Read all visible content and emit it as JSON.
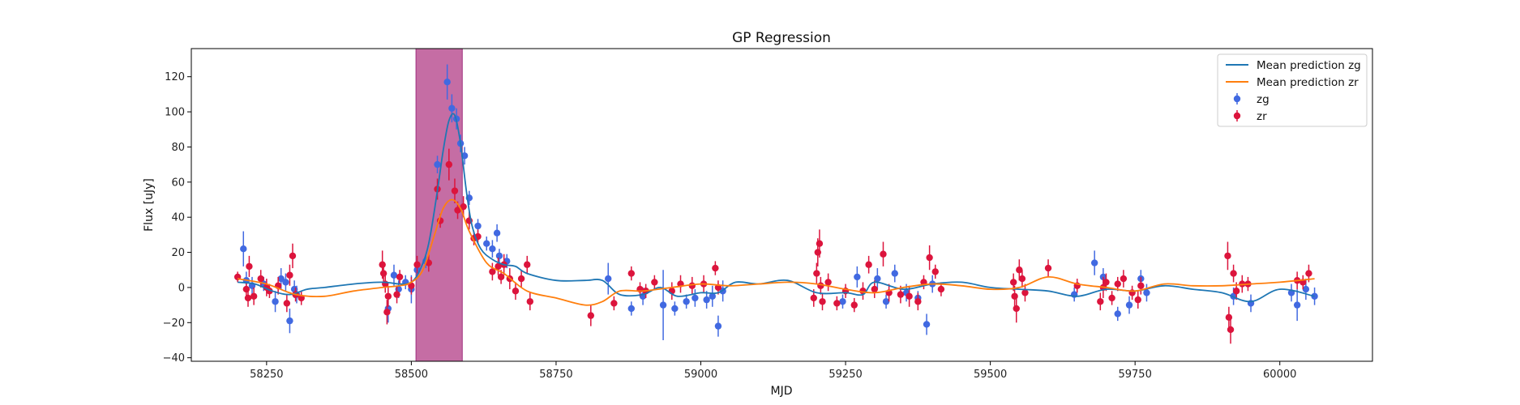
{
  "chart_data": {
    "type": "scatter",
    "title": "GP Regression",
    "xlabel": "MJD",
    "ylabel": "Flux [uJy]",
    "xlim": [
      58120,
      60160
    ],
    "ylim": [
      -42,
      136
    ],
    "xticks": [
      58250,
      58500,
      58750,
      59000,
      59250,
      59500,
      59750,
      60000
    ],
    "yticks": [
      -40,
      -20,
      0,
      20,
      40,
      60,
      80,
      100,
      120
    ],
    "legend_position": "top-right",
    "highlight_band": {
      "x0": 58508,
      "x1": 58588,
      "color": "#c2659f"
    },
    "mean_predictions": [
      {
        "name": "Mean prediction zg",
        "color": "#1f77b4",
        "x": [
          58200,
          58230,
          58260,
          58290,
          58320,
          58350,
          58400,
          58450,
          58480,
          58500,
          58515,
          58530,
          58545,
          58555,
          58565,
          58575,
          58585,
          58595,
          58605,
          58620,
          58640,
          58660,
          58680,
          58700,
          58750,
          58800,
          58830,
          58860,
          58900,
          58930,
          58960,
          59000,
          59030,
          59060,
          59100,
          59150,
          59200,
          59250,
          59280,
          59300,
          59350,
          59400,
          59450,
          59500,
          59550,
          59600,
          59650,
          59700,
          59750,
          59800,
          59850,
          59900,
          59950,
          60000,
          60060
        ],
        "y": [
          3,
          2,
          -2,
          -4,
          -1,
          0,
          2,
          3,
          2,
          3,
          10,
          25,
          55,
          78,
          95,
          98,
          82,
          55,
          35,
          22,
          16,
          13,
          12,
          8,
          4,
          4,
          4,
          -4,
          -4,
          0,
          -5,
          -3,
          -3,
          3,
          2,
          4,
          -3,
          -3,
          -4,
          3,
          -1,
          2,
          3,
          0,
          -1,
          -2,
          -5,
          -1,
          -2,
          1,
          -1,
          -3,
          -8,
          -1,
          -5
        ]
      },
      {
        "name": "Mean prediction zr",
        "color": "#ff7f0e",
        "x": [
          58200,
          58250,
          58300,
          58350,
          58400,
          58450,
          58480,
          58500,
          58520,
          58540,
          58555,
          58570,
          58585,
          58600,
          58630,
          58660,
          58700,
          58750,
          58800,
          58830,
          58860,
          58900,
          58950,
          59000,
          59050,
          59100,
          59150,
          59200,
          59250,
          59300,
          59350,
          59400,
          59450,
          59500,
          59550,
          59600,
          59650,
          59700,
          59750,
          59800,
          59850,
          59900,
          59950,
          60000,
          60060
        ],
        "y": [
          5,
          2,
          -4,
          -5,
          -2,
          0,
          1,
          3,
          10,
          30,
          45,
          50,
          45,
          32,
          14,
          8,
          -2,
          -6,
          -10,
          -8,
          -2,
          -2,
          0,
          2,
          1,
          2,
          3,
          2,
          -1,
          -3,
          0,
          2,
          1,
          -1,
          0,
          6,
          2,
          0,
          -2,
          2,
          1,
          1,
          2,
          3,
          5
        ]
      }
    ],
    "series": [
      {
        "name": "zg",
        "color": "#4169e1",
        "points": [
          [
            58210,
            22,
            10
          ],
          [
            58215,
            4,
            5
          ],
          [
            58225,
            1,
            5
          ],
          [
            58245,
            2,
            4
          ],
          [
            58265,
            -8,
            6
          ],
          [
            58275,
            5,
            6
          ],
          [
            58283,
            3,
            5
          ],
          [
            58290,
            -19,
            7
          ],
          [
            58298,
            -1,
            5
          ],
          [
            58302,
            -4,
            5
          ],
          [
            58460,
            -12,
            8
          ],
          [
            58470,
            7,
            6
          ],
          [
            58478,
            -1,
            5
          ],
          [
            58490,
            3,
            4
          ],
          [
            58500,
            -1,
            8
          ],
          [
            58510,
            10,
            5
          ],
          [
            58525,
            15,
            4
          ],
          [
            58545,
            70,
            5
          ],
          [
            58562,
            117,
            10
          ],
          [
            58570,
            102,
            8
          ],
          [
            58578,
            96,
            6
          ],
          [
            58585,
            82,
            5
          ],
          [
            58592,
            75,
            5
          ],
          [
            58600,
            51,
            4
          ],
          [
            58615,
            35,
            4
          ],
          [
            58630,
            25,
            4
          ],
          [
            58640,
            22,
            5
          ],
          [
            58648,
            31,
            5
          ],
          [
            58652,
            18,
            4
          ],
          [
            58665,
            15,
            4
          ],
          [
            58840,
            5,
            9
          ],
          [
            58880,
            -12,
            4
          ],
          [
            58900,
            -5,
            5
          ],
          [
            58935,
            -10,
            20
          ],
          [
            58955,
            -12,
            4
          ],
          [
            58975,
            -8,
            4
          ],
          [
            58990,
            -6,
            5
          ],
          [
            59010,
            -7,
            5
          ],
          [
            59020,
            -5,
            6
          ],
          [
            59030,
            -22,
            6
          ],
          [
            59038,
            -2,
            6
          ],
          [
            59245,
            -8,
            4
          ],
          [
            59270,
            6,
            6
          ],
          [
            59305,
            5,
            6
          ],
          [
            59320,
            -8,
            4
          ],
          [
            59335,
            8,
            5
          ],
          [
            59355,
            -3,
            5
          ],
          [
            59375,
            -6,
            4
          ],
          [
            59390,
            -21,
            6
          ],
          [
            59400,
            2,
            5
          ],
          [
            59645,
            -4,
            4
          ],
          [
            59680,
            14,
            7
          ],
          [
            59695,
            6,
            5
          ],
          [
            59720,
            -15,
            4
          ],
          [
            59740,
            -10,
            5
          ],
          [
            59760,
            5,
            5
          ],
          [
            59770,
            -3,
            5
          ],
          [
            59920,
            -5,
            5
          ],
          [
            59950,
            -9,
            5
          ],
          [
            60020,
            -3,
            5
          ],
          [
            60030,
            -10,
            9
          ],
          [
            60045,
            -1,
            6
          ],
          [
            60060,
            -5,
            5
          ]
        ]
      },
      {
        "name": "zr",
        "color": "#dc143c",
        "points": [
          [
            58200,
            6,
            3
          ],
          [
            58215,
            -1,
            4
          ],
          [
            58218,
            -6,
            5
          ],
          [
            58220,
            12,
            6
          ],
          [
            58228,
            -5,
            5
          ],
          [
            58240,
            5,
            5
          ],
          [
            58250,
            0,
            5
          ],
          [
            58255,
            -2,
            4
          ],
          [
            58270,
            1,
            5
          ],
          [
            58285,
            -9,
            5
          ],
          [
            58290,
            7,
            6
          ],
          [
            58295,
            18,
            7
          ],
          [
            58300,
            -4,
            4
          ],
          [
            58310,
            -6,
            4
          ],
          [
            58450,
            13,
            8
          ],
          [
            58452,
            8,
            5
          ],
          [
            58455,
            2,
            5
          ],
          [
            58458,
            -14,
            7
          ],
          [
            58460,
            -5,
            6
          ],
          [
            58475,
            -4,
            5
          ],
          [
            58480,
            6,
            4
          ],
          [
            58500,
            1,
            5
          ],
          [
            58510,
            13,
            5
          ],
          [
            58530,
            14,
            5
          ],
          [
            58545,
            56,
            6
          ],
          [
            58550,
            38,
            4
          ],
          [
            58565,
            70,
            9
          ],
          [
            58575,
            55,
            7
          ],
          [
            58580,
            44,
            5
          ],
          [
            58590,
            46,
            6
          ],
          [
            58600,
            38,
            5
          ],
          [
            58608,
            28,
            4
          ],
          [
            58615,
            29,
            4
          ],
          [
            58640,
            9,
            5
          ],
          [
            58650,
            12,
            5
          ],
          [
            58655,
            6,
            4
          ],
          [
            58660,
            13,
            6
          ],
          [
            58670,
            5,
            6
          ],
          [
            58680,
            -2,
            5
          ],
          [
            58690,
            5,
            5
          ],
          [
            58700,
            13,
            5
          ],
          [
            58705,
            -8,
            5
          ],
          [
            58810,
            -16,
            6
          ],
          [
            58850,
            -9,
            4
          ],
          [
            58880,
            8,
            4
          ],
          [
            58895,
            -1,
            4
          ],
          [
            58905,
            -2,
            4
          ],
          [
            58920,
            3,
            4
          ],
          [
            58950,
            -2,
            5
          ],
          [
            58965,
            2,
            5
          ],
          [
            58985,
            1,
            5
          ],
          [
            59005,
            2,
            5
          ],
          [
            59025,
            11,
            4
          ],
          [
            59030,
            0,
            4
          ],
          [
            59195,
            -6,
            5
          ],
          [
            59200,
            8,
            6
          ],
          [
            59202,
            20,
            8
          ],
          [
            59205,
            25,
            8
          ],
          [
            59207,
            1,
            5
          ],
          [
            59210,
            -8,
            5
          ],
          [
            59220,
            3,
            5
          ],
          [
            59235,
            -9,
            4
          ],
          [
            59250,
            -2,
            4
          ],
          [
            59265,
            -10,
            4
          ],
          [
            59280,
            -2,
            5
          ],
          [
            59290,
            13,
            5
          ],
          [
            59300,
            -1,
            5
          ],
          [
            59315,
            19,
            7
          ],
          [
            59325,
            -3,
            5
          ],
          [
            59345,
            -4,
            5
          ],
          [
            59360,
            -5,
            6
          ],
          [
            59375,
            -8,
            5
          ],
          [
            59385,
            3,
            4
          ],
          [
            59395,
            17,
            7
          ],
          [
            59405,
            9,
            4
          ],
          [
            59415,
            -1,
            4
          ],
          [
            59540,
            3,
            5
          ],
          [
            59542,
            -5,
            6
          ],
          [
            59545,
            -12,
            8
          ],
          [
            59550,
            10,
            6
          ],
          [
            59555,
            5,
            5
          ],
          [
            59560,
            -3,
            5
          ],
          [
            59600,
            11,
            5
          ],
          [
            59650,
            1,
            4
          ],
          [
            59690,
            -8,
            5
          ],
          [
            59695,
            0,
            6
          ],
          [
            59700,
            3,
            5
          ],
          [
            59710,
            -6,
            4
          ],
          [
            59720,
            2,
            4
          ],
          [
            59730,
            5,
            5
          ],
          [
            59745,
            -3,
            4
          ],
          [
            59755,
            -7,
            5
          ],
          [
            59760,
            1,
            5
          ],
          [
            59910,
            18,
            8
          ],
          [
            59912,
            -17,
            6
          ],
          [
            59915,
            -24,
            8
          ],
          [
            59920,
            8,
            5
          ],
          [
            59925,
            -2,
            5
          ],
          [
            59935,
            2,
            5
          ],
          [
            59945,
            2,
            4
          ],
          [
            60030,
            4,
            5
          ],
          [
            60040,
            3,
            4
          ],
          [
            60050,
            8,
            5
          ]
        ]
      }
    ]
  }
}
